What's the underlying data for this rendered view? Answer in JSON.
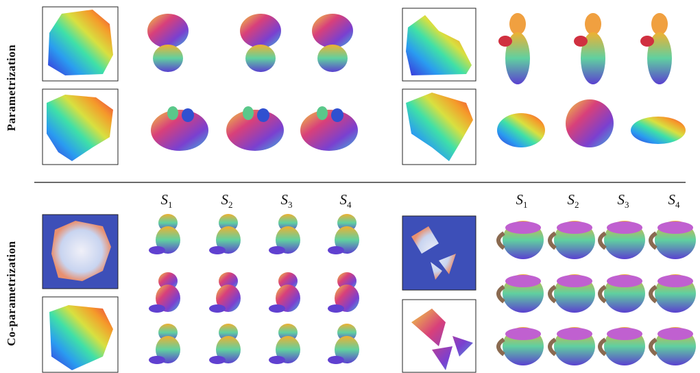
{
  "rows": [
    {
      "label": "Parametrization"
    },
    {
      "label": "Co-parametrization"
    }
  ],
  "columns_left": [
    {
      "base": "S",
      "sub": "1"
    },
    {
      "base": "S",
      "sub": "2"
    },
    {
      "base": "S",
      "sub": "3"
    },
    {
      "base": "S",
      "sub": "4"
    }
  ],
  "columns_right": [
    {
      "base": "S",
      "sub": "1"
    },
    {
      "base": "S",
      "sub": "2"
    },
    {
      "base": "S",
      "sub": "3"
    },
    {
      "base": "S",
      "sub": "4"
    }
  ]
}
